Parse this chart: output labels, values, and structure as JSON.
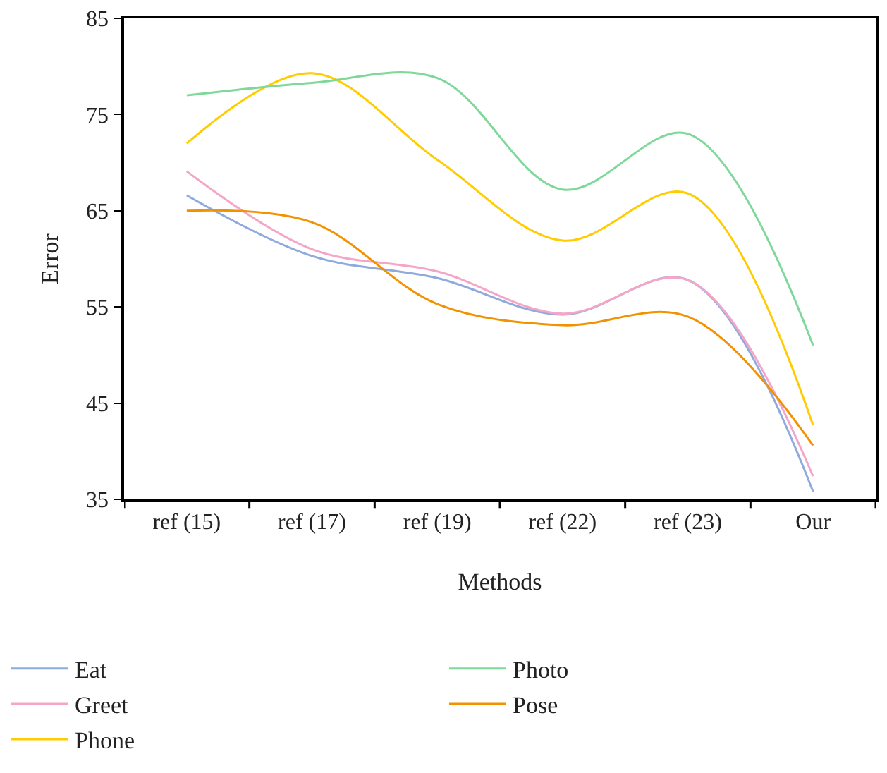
{
  "chart_data": {
    "type": "line",
    "xlabel": "Methods",
    "ylabel": "Error",
    "categories": [
      "ref (15)",
      "ref (17)",
      "ref (19)",
      "ref (22)",
      "ref (23)",
      "Our"
    ],
    "series": [
      {
        "name": "Eat",
        "color": "#8faadc",
        "values": [
          66.6,
          60.3,
          58.0,
          54.2,
          57.8,
          35.8
        ]
      },
      {
        "name": "Greet",
        "color": "#f4a6c8",
        "values": [
          69.1,
          61.0,
          58.7,
          54.3,
          57.8,
          37.4
        ]
      },
      {
        "name": "Phone",
        "color": "#ffcc00",
        "values": [
          72.0,
          79.3,
          70.3,
          61.9,
          66.8,
          42.7
        ]
      },
      {
        "name": "Photo",
        "color": "#7fd89a",
        "values": [
          77.0,
          78.3,
          78.8,
          67.2,
          73.0,
          51.0
        ]
      },
      {
        "name": "Pose",
        "color": "#f39200",
        "values": [
          65.0,
          63.8,
          55.3,
          53.1,
          54.0,
          40.6
        ]
      }
    ],
    "ylim": [
      35,
      85
    ],
    "yticks": [
      35,
      45,
      55,
      65,
      75,
      85
    ],
    "legend": "bottom",
    "marker": "none",
    "line_style": "solid"
  }
}
